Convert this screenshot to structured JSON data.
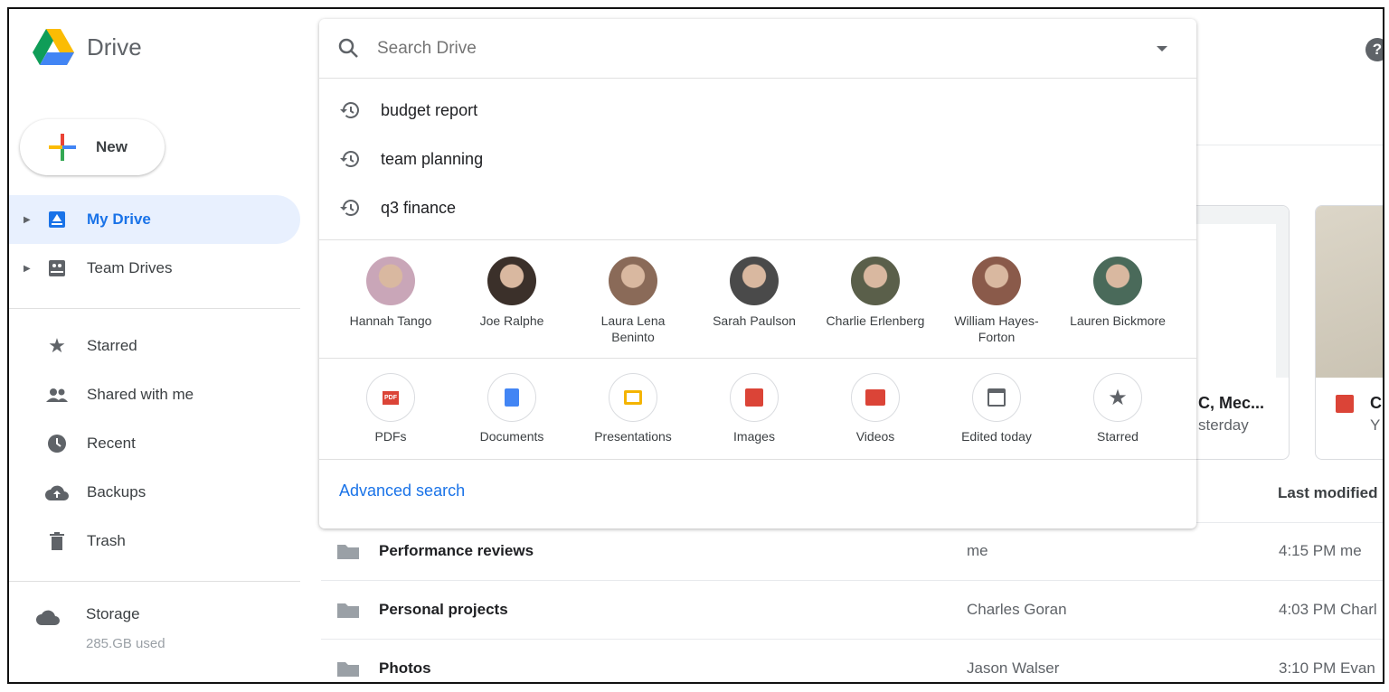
{
  "app": {
    "title": "Drive"
  },
  "sidebar": {
    "new_label": "New",
    "items": [
      {
        "label": "My Drive",
        "icon": "my-drive-icon",
        "active": true
      },
      {
        "label": "Team Drives",
        "icon": "team-drives-icon"
      },
      {
        "label": "Starred",
        "icon": "star-icon"
      },
      {
        "label": "Shared with me",
        "icon": "people-icon"
      },
      {
        "label": "Recent",
        "icon": "clock-icon"
      },
      {
        "label": "Backups",
        "icon": "cloud-upload-icon"
      },
      {
        "label": "Trash",
        "icon": "trash-icon"
      }
    ],
    "storage": {
      "label": "Storage",
      "used": "285.GB used"
    }
  },
  "search": {
    "placeholder": "Search Drive",
    "recent": [
      "budget report",
      "team planning",
      "q3 finance"
    ],
    "people": [
      {
        "name": "Hannah Tango",
        "color": "#c9a6b8"
      },
      {
        "name": "Joe Ralphe",
        "color": "#3b302a"
      },
      {
        "name": "Laura Lena Beninto",
        "color": "#8a6a58"
      },
      {
        "name": "Sarah Paulson",
        "color": "#4a4a4a"
      },
      {
        "name": "Charlie Erlenberg",
        "color": "#5a5f4a"
      },
      {
        "name": "William Hayes-Forton",
        "color": "#8a5a4a"
      },
      {
        "name": "Lauren Bickmore",
        "color": "#4a6a5a"
      }
    ],
    "types": [
      {
        "label": "PDFs",
        "icon": "pdf-icon",
        "color": "#db4437"
      },
      {
        "label": "Documents",
        "icon": "document-icon",
        "color": "#4285f4"
      },
      {
        "label": "Presentations",
        "icon": "presentation-icon",
        "color": "#f4b400"
      },
      {
        "label": "Images",
        "icon": "image-icon",
        "color": "#db4437"
      },
      {
        "label": "Videos",
        "icon": "video-icon",
        "color": "#db4437"
      },
      {
        "label": "Edited today",
        "icon": "calendar-icon",
        "color": "#5f6368"
      },
      {
        "label": "Starred",
        "icon": "star-icon",
        "color": "#5f6368"
      }
    ],
    "advanced_label": "Advanced search"
  },
  "quick_access": [
    {
      "title": "C, Mec...",
      "subtitle": "sterday"
    },
    {
      "title": "C",
      "subtitle": "Y"
    }
  ],
  "files": {
    "column_last_modified": "Last modified",
    "rows": [
      {
        "name": "Performance reviews",
        "owner": "me",
        "modified": "4:15 PM me"
      },
      {
        "name": "Personal projects",
        "owner": "Charles Goran",
        "modified": "4:03 PM Charl"
      },
      {
        "name": "Photos",
        "owner": "Jason Walser",
        "modified": "3:10 PM Evan"
      }
    ]
  },
  "colors": {
    "accent": "#1a73e8",
    "active_bg": "#e8f0fe"
  }
}
